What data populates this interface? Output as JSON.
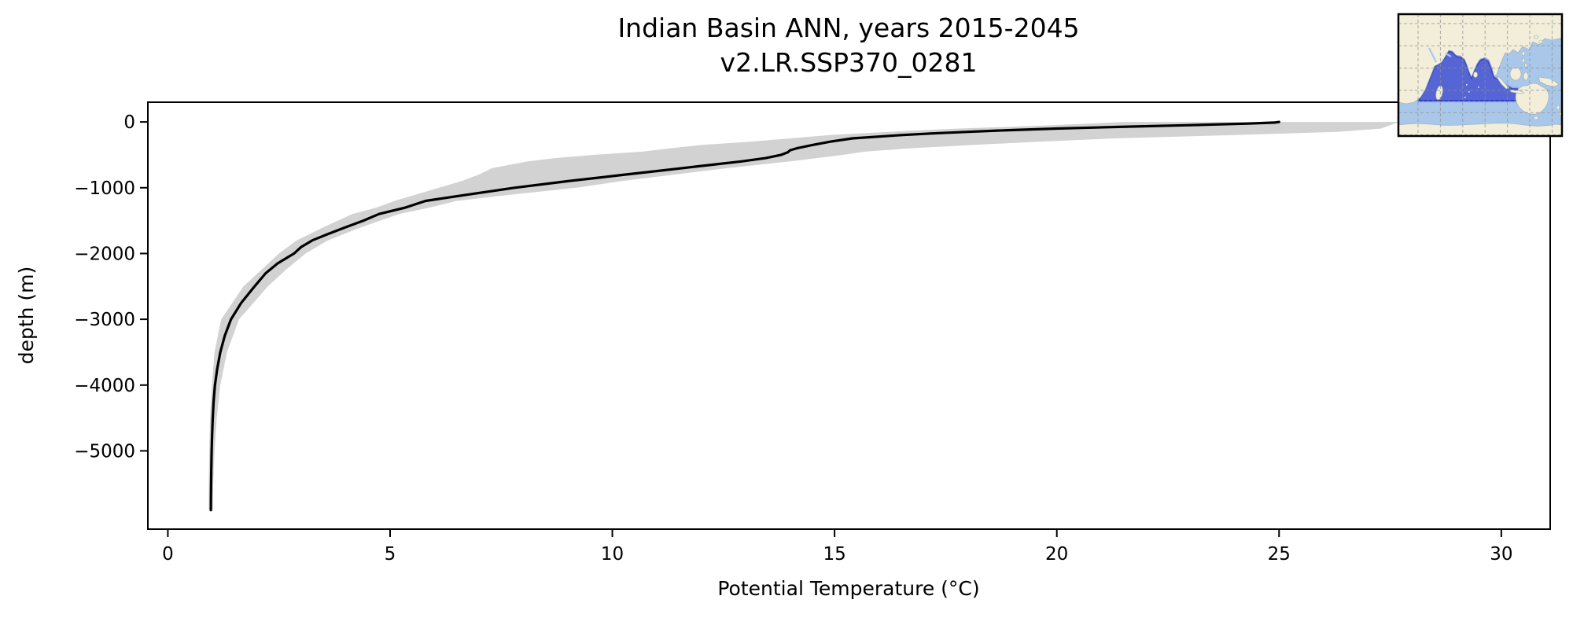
{
  "title": {
    "line1": "Indian Basin ANN, years 2015-2045",
    "line2": "v2.LR.SSP370_0281"
  },
  "axes": {
    "xlabel": "Potential Temperature (°C)",
    "ylabel": "depth (m)"
  },
  "chart_data": {
    "type": "line",
    "title": "Indian Basin ANN, years 2015-2045",
    "subtitle": "v2.LR.SSP370_0281",
    "xlabel": "Potential Temperature (°C)",
    "ylabel": "depth (m)",
    "xlim": [
      -0.45,
      31.1
    ],
    "ylim": [
      -6190,
      300
    ],
    "x_ticks": [
      0,
      5,
      10,
      15,
      20,
      25,
      30
    ],
    "y_ticks": [
      0,
      -1000,
      -2000,
      -3000,
      -4000,
      -5000
    ],
    "grid": false,
    "legend": "none",
    "line_color": "#000000",
    "band_color": "#d2d2d2",
    "series": [
      {
        "name": "mean_potential_temperature_profile",
        "depth_m": [
          0,
          -10,
          -25,
          -50,
          -75,
          -100,
          -125,
          -150,
          -175,
          -200,
          -250,
          -300,
          -350,
          -400,
          -430,
          -460,
          -500,
          -550,
          -600,
          -650,
          -700,
          -750,
          -800,
          -900,
          -1000,
          -1100,
          -1200,
          -1300,
          -1400,
          -1500,
          -1600,
          -1700,
          -1800,
          -1900,
          -2000,
          -2150,
          -2300,
          -2500,
          -2750,
          -3000,
          -3250,
          -3500,
          -3750,
          -4000,
          -4250,
          -4500,
          -4750,
          -5000,
          -5250,
          -5500,
          -5700,
          -5900
        ],
        "temperature_c": [
          25.0,
          24.9,
          24.3,
          22.9,
          21.4,
          20.0,
          18.9,
          18.0,
          17.2,
          16.5,
          15.4,
          14.9,
          14.5,
          14.15,
          14.0,
          13.95,
          13.8,
          13.45,
          12.9,
          12.25,
          11.6,
          10.95,
          10.3,
          9.0,
          7.8,
          6.8,
          5.8,
          5.35,
          4.75,
          4.4,
          4.0,
          3.62,
          3.25,
          3.0,
          2.84,
          2.47,
          2.2,
          1.95,
          1.65,
          1.42,
          1.28,
          1.18,
          1.11,
          1.06,
          1.03,
          1.01,
          0.995,
          0.985,
          0.978,
          0.973,
          0.97,
          0.968
        ]
      }
    ],
    "band": {
      "name": "variability_envelope",
      "depth_m": [
        0,
        -50,
        -100,
        -150,
        -200,
        -250,
        -300,
        -350,
        -400,
        -450,
        -500,
        -550,
        -600,
        -700,
        -800,
        -900,
        -1000,
        -1100,
        -1200,
        -1300,
        -1400,
        -1600,
        -1800,
        -2000,
        -2250,
        -2500,
        -3000,
        -3500,
        -4000,
        -4500,
        -5000,
        -5500,
        -5900
      ],
      "low_c": [
        21.5,
        19.9,
        17.8,
        16.2,
        14.9,
        14.0,
        13.1,
        12.0,
        11.3,
        10.7,
        9.6,
        8.7,
        8.1,
        7.3,
        7.0,
        6.6,
        6.1,
        5.6,
        5.1,
        4.7,
        4.15,
        3.5,
        2.9,
        2.5,
        2.1,
        1.7,
        1.2,
        1.05,
        0.99,
        0.95,
        0.93,
        0.92,
        0.92
      ],
      "high_c": [
        27.7,
        27.5,
        27.3,
        26.3,
        24.0,
        21.3,
        19.6,
        18.1,
        16.7,
        15.7,
        15.2,
        14.6,
        14.0,
        12.6,
        11.4,
        10.2,
        9.2,
        7.8,
        6.5,
        5.9,
        5.2,
        4.35,
        3.6,
        3.1,
        2.65,
        2.25,
        1.6,
        1.33,
        1.18,
        1.1,
        1.05,
        1.02,
        1.01
      ]
    },
    "inset": {
      "name": "indian-basin-region-map",
      "region_color": "#5565d5",
      "region_border_color": "#3646c6",
      "ocean_color": "#a9c7e8",
      "land_color": "#f2eeda"
    }
  }
}
